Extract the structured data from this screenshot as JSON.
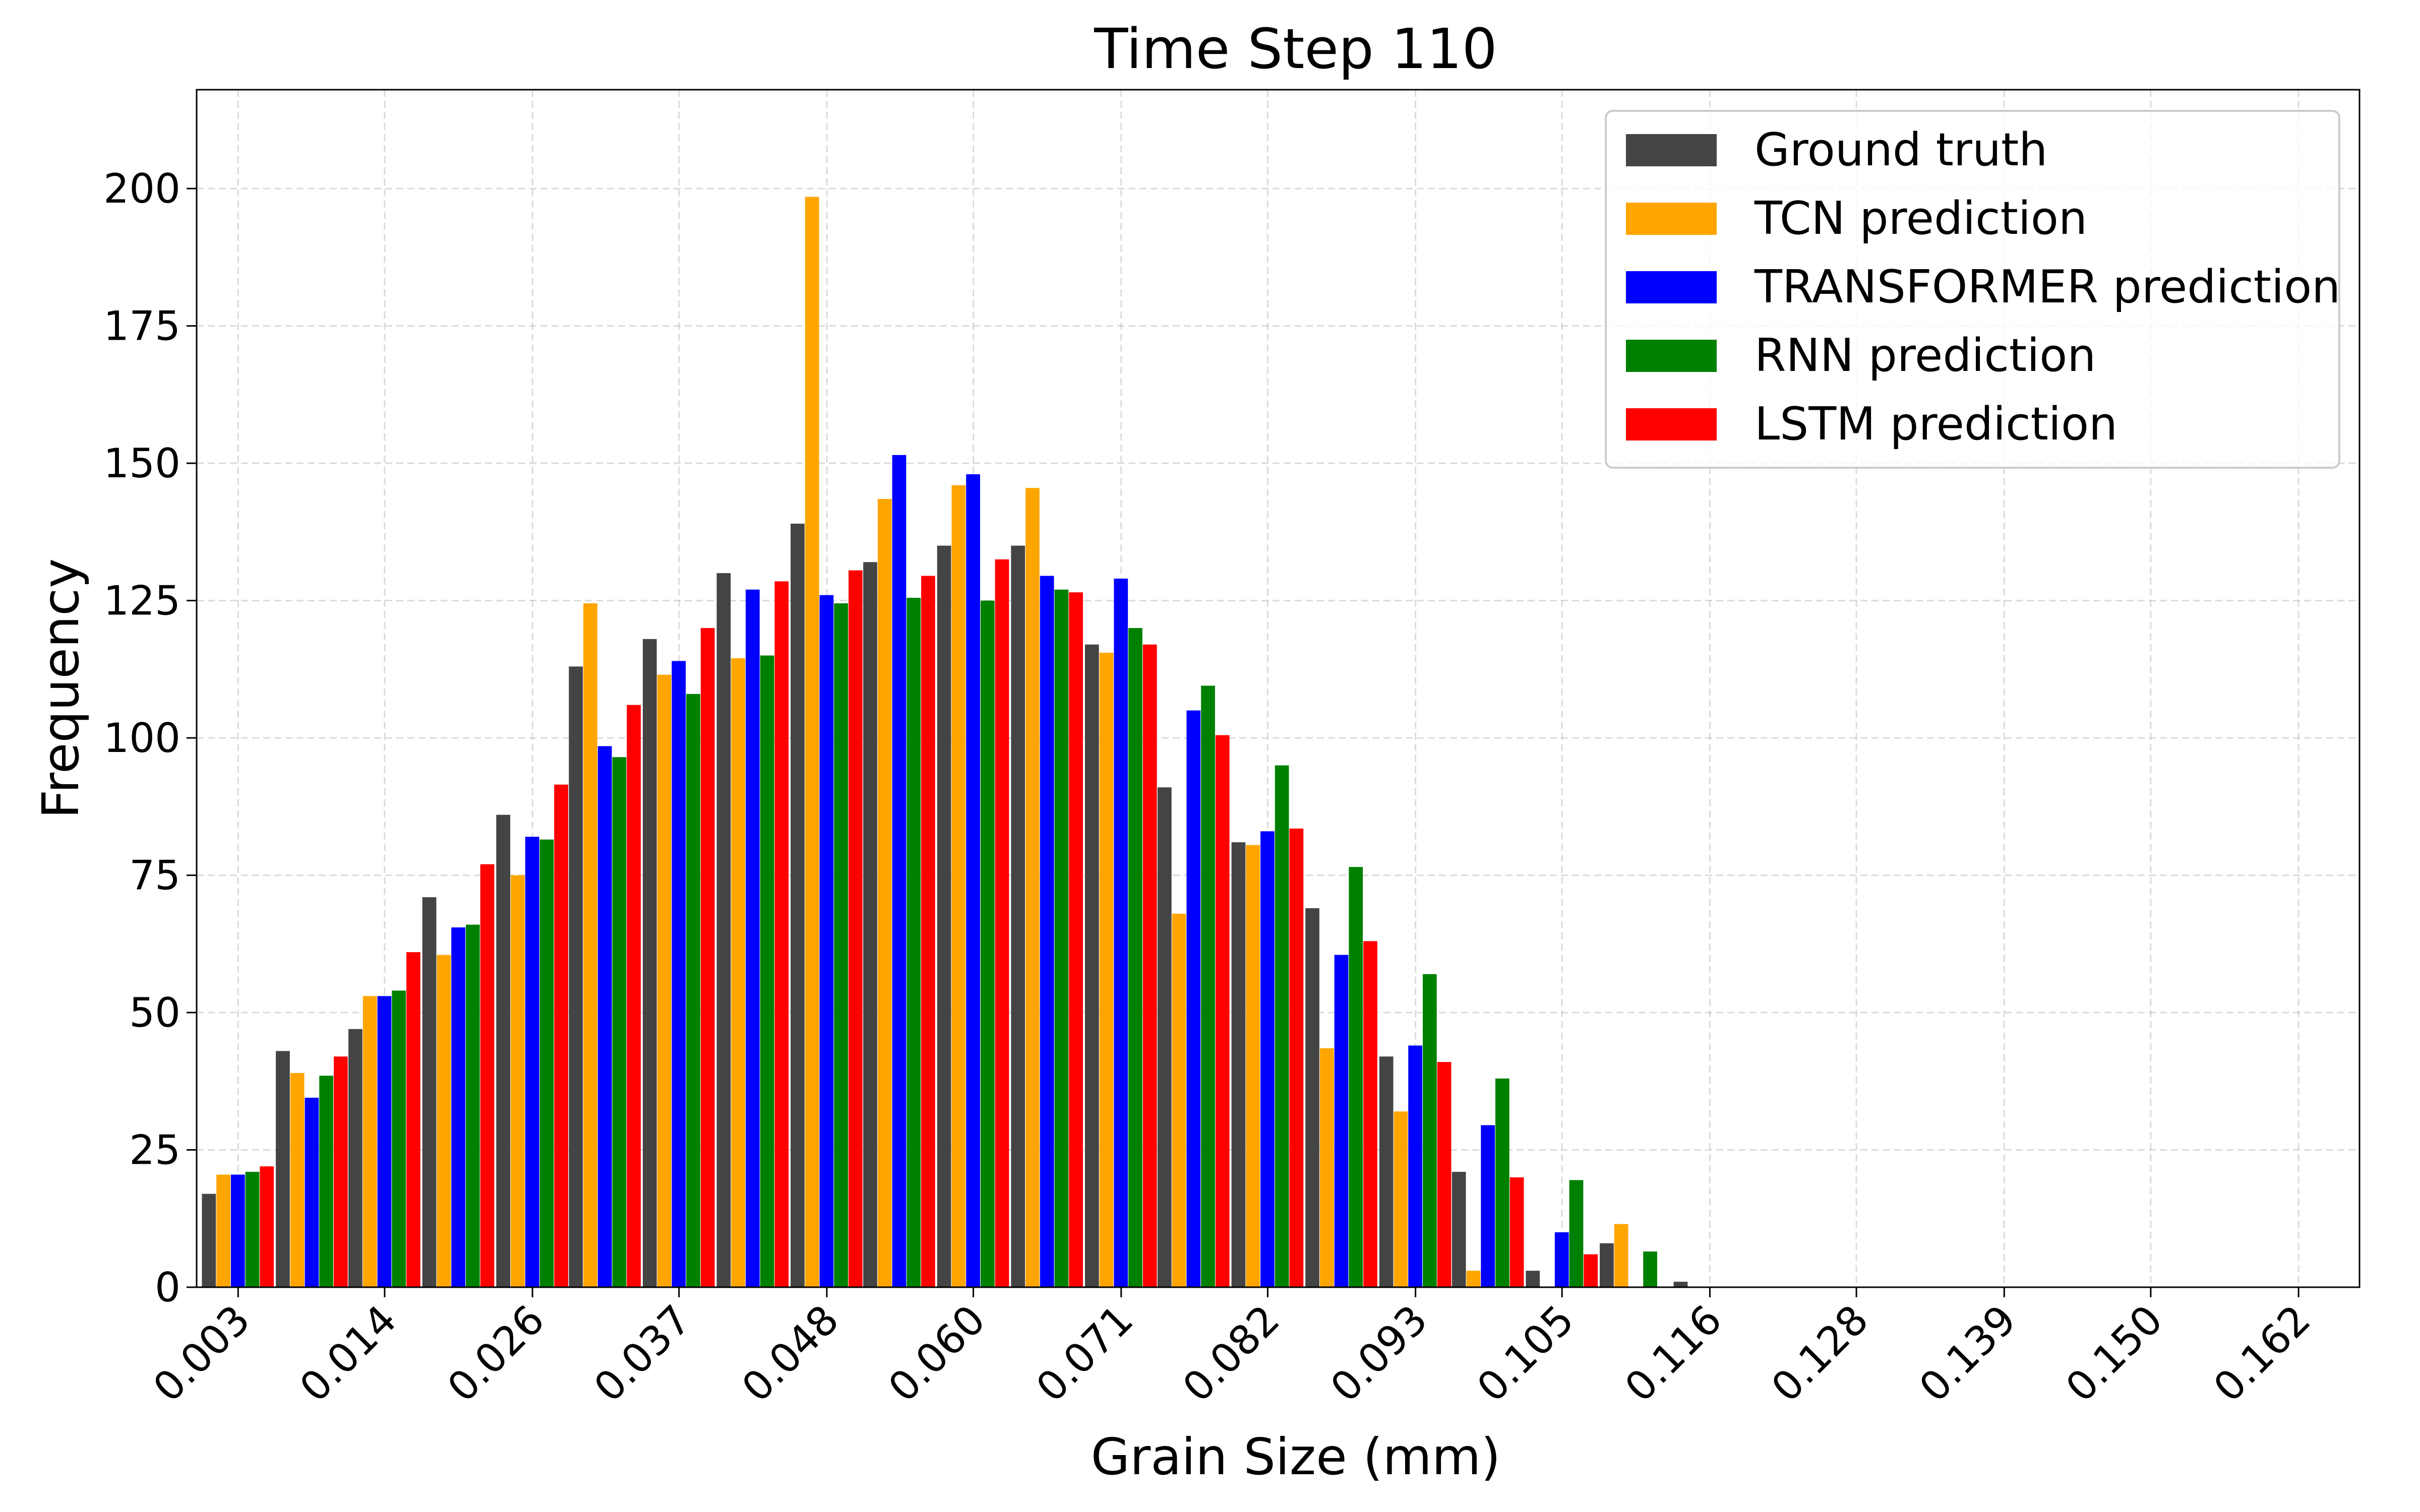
{
  "chart_data": {
    "type": "bar",
    "title": "Time Step 110",
    "xlabel": "Grain Size (mm)",
    "ylabel": "Frequency",
    "ylim": [
      0,
      218
    ],
    "grid": true,
    "legend_position": "top-right",
    "y_ticks": [
      0,
      25,
      50,
      75,
      100,
      125,
      150,
      175,
      200
    ],
    "x_tick_labels": [
      "0.003",
      "0.014",
      "0.026",
      "0.037",
      "0.048",
      "0.060",
      "0.071",
      "0.082",
      "0.093",
      "0.105",
      "0.116",
      "0.128",
      "0.139",
      "0.150",
      "0.162"
    ],
    "x_tick_positions": [
      0.003,
      0.0143,
      0.0257,
      0.037,
      0.0484,
      0.0597,
      0.0711,
      0.0824,
      0.0938,
      0.1051,
      0.1165,
      0.1278,
      0.1392,
      0.1505,
      0.1619
    ],
    "xlim": [
      -0.0002,
      0.1666
    ],
    "bin_centers": [
      0.003,
      0.0087,
      0.0143,
      0.02,
      0.0257,
      0.0313,
      0.037,
      0.0427,
      0.0484,
      0.054,
      0.0597,
      0.0654,
      0.0711,
      0.0767,
      0.0824,
      0.0881,
      0.0938,
      0.0994,
      0.1051,
      0.1108,
      0.1165
    ],
    "series": [
      {
        "name": "Ground truth",
        "color": "#444444",
        "values": [
          17,
          43,
          47,
          71,
          86,
          113,
          118,
          130,
          139,
          132,
          135,
          135,
          117,
          91,
          81,
          69,
          42,
          21,
          3,
          8,
          1
        ]
      },
      {
        "name": "TCN prediction",
        "color": "#ffa500",
        "values": [
          20.5,
          39,
          53,
          60.5,
          75,
          124.5,
          111.5,
          114.5,
          198.5,
          143.5,
          146,
          145.5,
          115.5,
          68,
          80.5,
          43.5,
          32,
          3,
          0,
          11.5,
          0
        ]
      },
      {
        "name": "TRANSFORMER prediction",
        "color": "#0000ff",
        "values": [
          20.5,
          34.5,
          53,
          65.5,
          82,
          98.5,
          114,
          127,
          126,
          151.5,
          148,
          129.5,
          129,
          105,
          83,
          60.5,
          44,
          29.5,
          10,
          0,
          0
        ]
      },
      {
        "name": "RNN prediction",
        "color": "#008000",
        "values": [
          21,
          38.5,
          54,
          66,
          81.5,
          96.5,
          108,
          115,
          124.5,
          125.5,
          125,
          127,
          120,
          109.5,
          95,
          76.5,
          57,
          38,
          19.5,
          6.5,
          0
        ]
      },
      {
        "name": "LSTM prediction",
        "color": "#ff0000",
        "values": [
          22,
          42,
          61,
          77,
          91.5,
          106,
          120,
          128.5,
          130.5,
          129.5,
          132.5,
          126.5,
          117,
          100.5,
          83.5,
          63,
          41,
          20,
          6,
          0,
          0
        ]
      }
    ]
  }
}
